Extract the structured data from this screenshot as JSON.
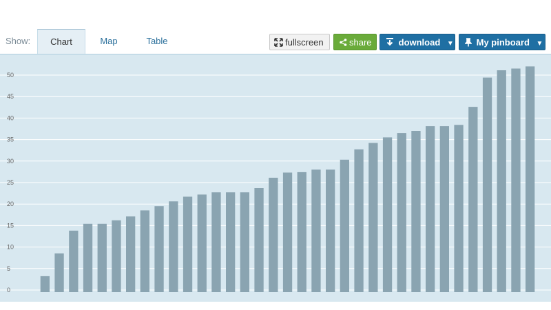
{
  "toolbar": {
    "show_label": "Show:",
    "tabs": [
      {
        "label": "Chart",
        "active": true
      },
      {
        "label": "Map",
        "active": false
      },
      {
        "label": "Table",
        "active": false
      }
    ],
    "fullscreen_label": "fullscreen",
    "share_label": "share",
    "download_label": "download",
    "pinboard_label": "My pinboard",
    "icons": {
      "fullscreen": "expand-arrows-icon",
      "share": "share-icon",
      "download": "download-icon",
      "pinboard": "pin-icon",
      "caret": "caret-down-icon"
    },
    "colors": {
      "share": "#6aab3a",
      "download": "#1f6fa3",
      "pinboard": "#1f6fa3"
    }
  },
  "chart_data": {
    "type": "bar",
    "title": "",
    "xlabel": "",
    "ylabel": "",
    "ylim": [
      0,
      55
    ],
    "yticks": [
      0,
      5,
      10,
      15,
      20,
      25,
      30,
      35,
      40,
      45,
      50
    ],
    "grid": true,
    "bar_color": "#8aa4b1",
    "background": "#d8e8f0",
    "values": [
      3.7,
      9.0,
      14.3,
      15.9,
      15.9,
      16.7,
      17.6,
      19.0,
      20.0,
      21.1,
      22.2,
      22.7,
      23.2,
      23.2,
      23.2,
      24.2,
      26.6,
      27.8,
      27.9,
      28.5,
      28.5,
      30.8,
      33.2,
      34.7,
      36.0,
      37.0,
      37.5,
      38.6,
      38.6,
      38.9,
      43.1,
      49.9,
      51.6,
      52.0,
      52.5
    ]
  }
}
